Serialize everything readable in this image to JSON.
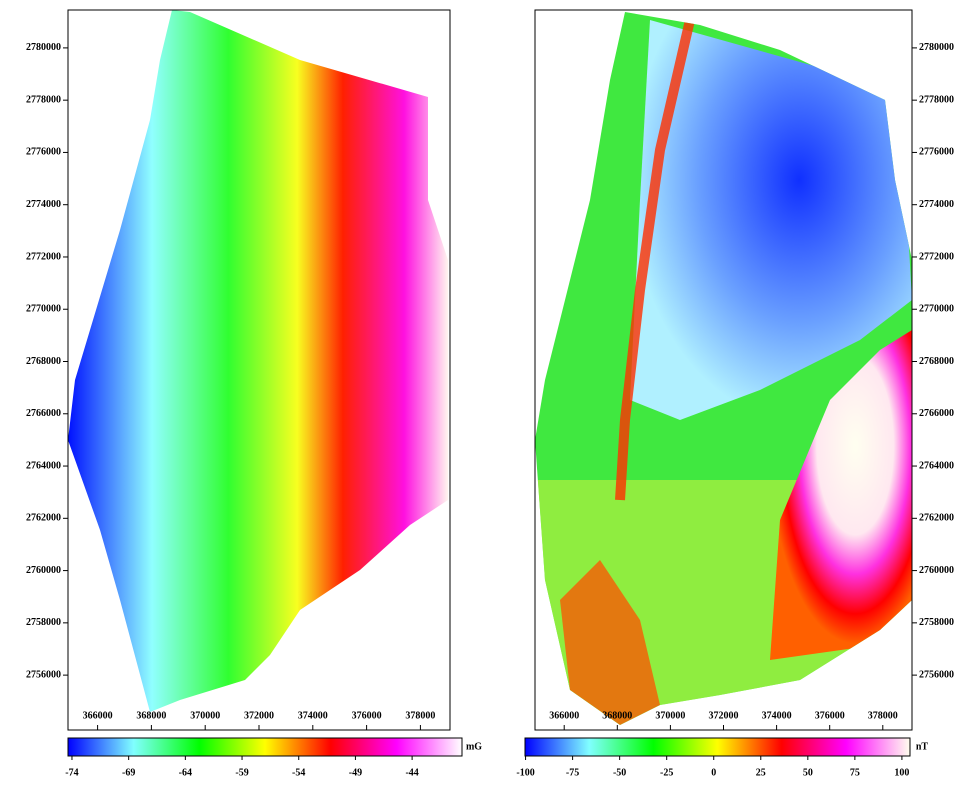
{
  "chart_data": [
    {
      "type": "map",
      "unit": "mG",
      "xlim": [
        364900,
        379100
      ],
      "xticks": [
        366000,
        368000,
        370000,
        372000,
        374000,
        376000,
        378000
      ],
      "ylim": [
        2753900,
        2781450
      ],
      "yticks": [
        2756000,
        2758000,
        2760000,
        2762000,
        2764000,
        2766000,
        2768000,
        2770000,
        2772000,
        2774000,
        2776000,
        2778000,
        2780000
      ],
      "colorbar": {
        "lim": [
          -74.35,
          -39.6
        ],
        "ticks": [
          -74,
          -69,
          -64,
          -59,
          -54,
          -49,
          -44
        ],
        "colors": [
          "#0000ff",
          "#80ffff",
          "#00ff00",
          "#ffff00",
          "#ff0000",
          "#ff00ff",
          "#ffffff"
        ]
      }
    },
    {
      "type": "map",
      "unit": "nT",
      "xlim": [
        364900,
        379100
      ],
      "xticks": [
        366000,
        368000,
        370000,
        372000,
        374000,
        376000,
        378000
      ],
      "ylim": [
        2753900,
        2781450
      ],
      "yticks": [
        2756000,
        2758000,
        2760000,
        2762000,
        2764000,
        2766000,
        2768000,
        2770000,
        2772000,
        2774000,
        2776000,
        2778000,
        2780000
      ],
      "colorbar": {
        "lim": [
          -100.3,
          104.3
        ],
        "ticks": [
          -100,
          -75,
          -50,
          -25,
          0,
          25,
          50,
          75,
          100
        ],
        "colors": [
          "#0000ff",
          "#80ffff",
          "#00ff00",
          "#ffff00",
          "#ff0000",
          "#ff00ff",
          "#ffffee"
        ]
      }
    }
  ]
}
